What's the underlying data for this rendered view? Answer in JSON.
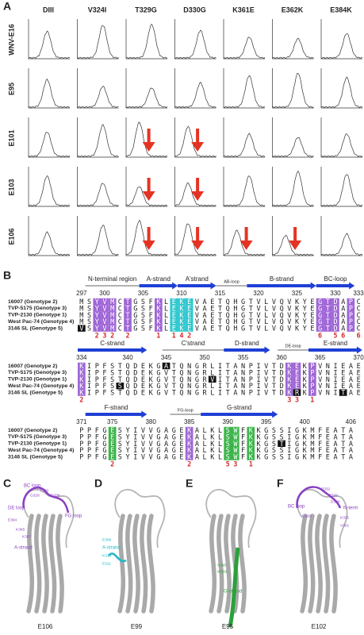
{
  "panel_a": {
    "label": "A",
    "columns": [
      "DIII",
      "V324I",
      "T329G",
      "D330G",
      "K361E",
      "E362K",
      "E384K"
    ],
    "rows": [
      "WNV-E16",
      "E95",
      "E101",
      "E103",
      "E106"
    ]
  },
  "panel_b": {
    "label": "B",
    "blocks": [
      {
        "ticks": [
          297,
          300,
          305,
          310,
          315,
          320,
          325,
          330,
          333
        ],
        "regions": [
          "N-terminal region",
          "A-strand",
          "A'strand",
          "AB-loop",
          "B-strand",
          "BC-loop"
        ],
        "sequences": [
          {
            "name": "16007 (Genotype 2)",
            "residues": "MSYVMCTGSFKLEKEVAETQHGTVLVQVKYEGTDAPC"
          },
          {
            "name": "TVP-5175 (Genotype 3)",
            "residues": "MSYVMCTGSFKLEKEVAETQHGTVLVQVKYEGTDAPC"
          },
          {
            "name": "TVP-2130 (Genotype 1)",
            "residues": "MSYVMCTGSFKLEKEVAETQHGTVLVQVKYEGTDAPC"
          },
          {
            "name": "West Pac-74 (Genotype 4)",
            "residues": "MSYVMCTGSFKLEKEVAETQHGTVLVQVKYEGTDAPC"
          },
          {
            "name": "3146 SL (Genotype 5)",
            "residues": "VSYVMCTGSFKLEKEVAETQHGTVLVQVKYEGTDAPC"
          }
        ],
        "counts": "  232 2   1 142                6 56 6"
      },
      {
        "ticks": [
          334,
          340,
          345,
          350,
          355,
          360,
          365,
          370
        ],
        "regions": [
          "C-strand",
          "C'strand",
          "D-strand",
          "DE-loop",
          "E-strand"
        ],
        "sequences": [
          {
            "name": "16007 (Genotype 2)",
            "residues": "KIPFSTQDEKGATQNGRLITANPIVTDKEKPVNIEAE"
          },
          {
            "name": "TVP-5175 (Genotype 3)",
            "residues": "KIPFSTQDEKGVTQNGRLITANPIVTDKEKPVNIEAE"
          },
          {
            "name": "TVP-2130 (Genotype 1)",
            "residues": "KIPFSTQDEKGVTQNGRVITANPIVTDKEKPVNIEAE"
          },
          {
            "name": "West Pac-74 (Genotype 4)",
            "residues": "KIPFSSQDEKGVTQNGRLITANPIVTDKEKPVNIEAE"
          },
          {
            "name": "3146 SL (Genotype 5)",
            "residues": "KIPFSTQDEKGVTQNGRLITANPIVTDKRKPVNITAE"
          }
        ],
        "counts": "2                          33 1"
      },
      {
        "ticks": [
          371,
          375,
          380,
          385,
          390,
          395,
          400,
          406
        ],
        "regions": [
          "F-strand",
          "FG-loop",
          "G-strand"
        ],
        "sequences": [
          {
            "name": "16007 (Genotype 2)",
            "residues": "PPFGESYIVVGAGEKALKLSWFKKGSSIGKMFEATA"
          },
          {
            "name": "TVP-5175 (Genotype 3)",
            "residues": "PPFGESYIVVGAGEKALKLSWFKKGSSIGKMFEATA"
          },
          {
            "name": "TVP-2130 (Genotype 1)",
            "residues": "PPFGESYIVVGAGEKALKLSWFKKGSTIGKMFEATA"
          },
          {
            "name": "West Pac-74 (Genotype 4)",
            "residues": "PPFGESYIVVGAGEKALKLSWFKKGSSIGKMFEATA"
          },
          {
            "name": "3146 SL (Genotype 5)",
            "residues": "PPFGESYIVVGAGEKALKLSWFKKGSSIGKMFEATA"
          }
        ],
        "counts": "    2         2    53 1"
      }
    ]
  },
  "panel_c": {
    "label": "C",
    "caption": "E106",
    "annotations": [
      "BC loop",
      "DE loop",
      "FG loop",
      "A-strand",
      "T329",
      "G328",
      "D330",
      "E364",
      "K365",
      "K307"
    ]
  },
  "panel_d": {
    "label": "D",
    "caption": "E99",
    "annotations": [
      "A-strand",
      "E308",
      "K310",
      "E311"
    ]
  },
  "panel_e": {
    "label": "E",
    "caption": "E95",
    "annotations": [
      "G-strand",
      "S390",
      "W391"
    ]
  },
  "panel_f": {
    "label": "F",
    "caption": "E102",
    "annotations": [
      "BC loop",
      "N-term",
      "P332",
      "T329",
      "G328",
      "D330",
      "K331",
      "V301"
    ]
  }
}
